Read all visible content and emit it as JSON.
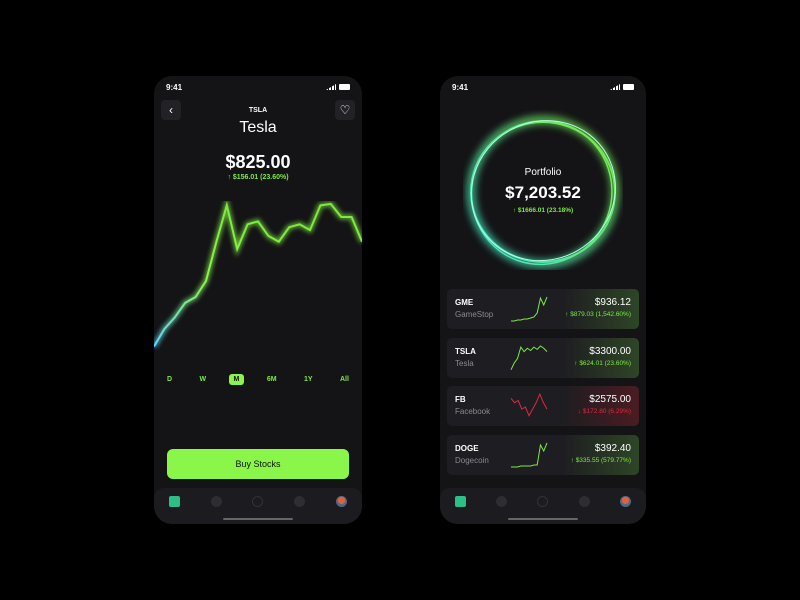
{
  "status": {
    "time": "9:41"
  },
  "detail": {
    "ticker": "TSLA",
    "name": "Tesla",
    "price": "$825.00",
    "change": "↑ $156.01 (23.60%)",
    "back_icon": "chevron-left-icon",
    "fav_icon": "heart-icon",
    "chart_values": [
      10,
      22,
      30,
      40,
      44,
      55,
      82,
      107,
      77,
      94,
      96,
      86,
      82,
      92,
      94,
      90,
      107,
      108,
      99,
      99,
      82
    ],
    "ranges": [
      {
        "label": "D"
      },
      {
        "label": "W"
      },
      {
        "label": "M",
        "active": true
      },
      {
        "label": "6M"
      },
      {
        "label": "1Y"
      },
      {
        "label": "All"
      }
    ],
    "buy_label": "Buy Stocks"
  },
  "portfolio": {
    "label": "Portfolio",
    "value": "$7,203.52",
    "change": "↑ $1666.01 (23.18%)",
    "holdings": [
      {
        "ticker": "GME",
        "name": "GameStop",
        "price": "$936.12",
        "change": "↑ $879.03 (1,542.60%)",
        "trend": "up",
        "spark": [
          2,
          2,
          3,
          3,
          4,
          4,
          5,
          6,
          10,
          25,
          18,
          26
        ]
      },
      {
        "ticker": "TSLA",
        "name": "Tesla",
        "price": "$3300.00",
        "change": "↑ $624.01 (23.60%)",
        "trend": "up",
        "spark": [
          2,
          8,
          12,
          22,
          18,
          21,
          19,
          22,
          20,
          23,
          21,
          18
        ]
      },
      {
        "ticker": "FB",
        "name": "Facebook",
        "price": "$2575.00",
        "change": "↓ $172.80 (6.29%)",
        "trend": "down",
        "spark": [
          20,
          16,
          18,
          10,
          12,
          4,
          10,
          16,
          24,
          16,
          10
        ]
      },
      {
        "ticker": "DOGE",
        "name": "Dogecoin",
        "price": "$392.40",
        "change": "↑ $335.55 (579.77%)",
        "trend": "up",
        "spark": [
          2,
          2,
          2,
          3,
          3,
          3,
          3,
          4,
          4,
          24,
          18,
          26
        ]
      }
    ]
  },
  "colors": {
    "accent": "#8af64a",
    "negative": "#e0283a",
    "ring": "#3cf0b0"
  },
  "nav": [
    "home-icon",
    "activity-icon",
    "search-icon",
    "chat-icon",
    "avatar"
  ]
}
